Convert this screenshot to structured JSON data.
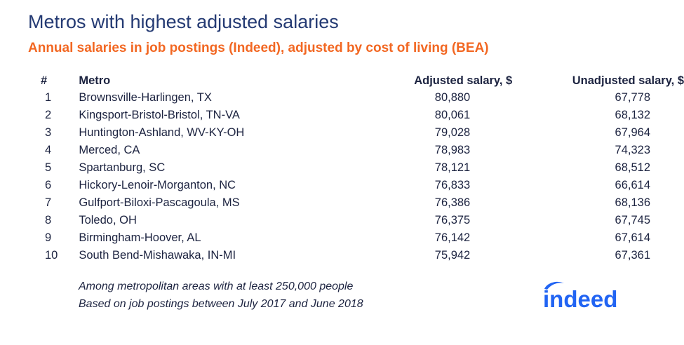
{
  "chart_data": {
    "type": "table",
    "title": "Metros with highest adjusted salaries",
    "subtitle": "Annual salaries in job postings (Indeed), adjusted by cost of living (BEA)",
    "columns": [
      "#",
      "Metro",
      "Adjusted salary, $",
      "Unadjusted salary, $"
    ],
    "rows": [
      {
        "rank": "1",
        "metro": "Brownsville-Harlingen, TX",
        "adjusted": "80,880",
        "unadjusted": "67,778"
      },
      {
        "rank": "2",
        "metro": "Kingsport-Bristol-Bristol, TN-VA",
        "adjusted": "80,061",
        "unadjusted": "68,132"
      },
      {
        "rank": "3",
        "metro": "Huntington-Ashland, WV-KY-OH",
        "adjusted": "79,028",
        "unadjusted": "67,964"
      },
      {
        "rank": "4",
        "metro": "Merced, CA",
        "adjusted": "78,983",
        "unadjusted": "74,323"
      },
      {
        "rank": "5",
        "metro": "Spartanburg, SC",
        "adjusted": "78,121",
        "unadjusted": "68,512"
      },
      {
        "rank": "6",
        "metro": "Hickory-Lenoir-Morganton, NC",
        "adjusted": "76,833",
        "unadjusted": "66,614"
      },
      {
        "rank": "7",
        "metro": "Gulfport-Biloxi-Pascagoula, MS",
        "adjusted": "76,386",
        "unadjusted": "68,136"
      },
      {
        "rank": "8",
        "metro": "Toledo, OH",
        "adjusted": "76,375",
        "unadjusted": "67,745"
      },
      {
        "rank": "9",
        "metro": "Birmingham-Hoover, AL",
        "adjusted": "76,142",
        "unadjusted": "67,614"
      },
      {
        "rank": "10",
        "metro": "South Bend-Mishawaka, IN-MI",
        "adjusted": "75,942",
        "unadjusted": "67,361"
      }
    ],
    "notes": [
      "Among metropolitan areas with at least 250,000 people",
      "Based on job postings between July 2017 and June 2018"
    ]
  },
  "logo": {
    "text": "indeed",
    "color": "#2164f3"
  },
  "colors": {
    "title": "#243a73",
    "subtitle": "#f26722",
    "text": "#1c2340"
  }
}
